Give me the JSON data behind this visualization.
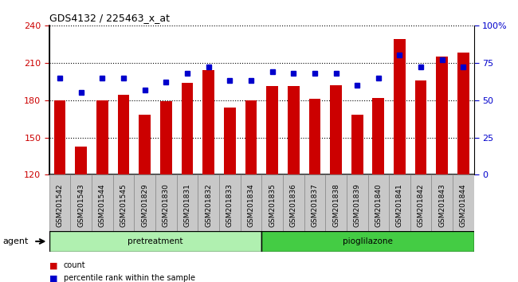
{
  "title": "GDS4132 / 225463_x_at",
  "samples": [
    "GSM201542",
    "GSM201543",
    "GSM201544",
    "GSM201545",
    "GSM201829",
    "GSM201830",
    "GSM201831",
    "GSM201832",
    "GSM201833",
    "GSM201834",
    "GSM201835",
    "GSM201836",
    "GSM201837",
    "GSM201838",
    "GSM201839",
    "GSM201840",
    "GSM201841",
    "GSM201842",
    "GSM201843",
    "GSM201844"
  ],
  "bar_values": [
    180,
    143,
    180,
    184,
    168,
    179,
    194,
    204,
    174,
    180,
    191,
    191,
    181,
    192,
    168,
    182,
    229,
    196,
    215,
    218
  ],
  "dot_values": [
    65,
    55,
    65,
    65,
    57,
    62,
    68,
    72,
    63,
    63,
    69,
    68,
    68,
    68,
    60,
    65,
    80,
    72,
    77,
    72
  ],
  "bar_color": "#cc0000",
  "dot_color": "#0000cc",
  "ylim_left": [
    120,
    240
  ],
  "yticks_left": [
    120,
    150,
    180,
    210,
    240
  ],
  "ylim_right": [
    0,
    100
  ],
  "yticks_right": [
    0,
    25,
    50,
    75,
    100
  ],
  "yright_labels": [
    "0",
    "25",
    "50",
    "75",
    "100%"
  ],
  "group1_label": "pretreatment",
  "group2_label": "pioglilazone",
  "group1_count": 10,
  "group2_count": 10,
  "agent_label": "agent",
  "legend_bar": "count",
  "legend_dot": "percentile rank within the sample",
  "bg_axes": "#ffffff",
  "sample_box_color": "#c8c8c8",
  "group1_color": "#b0f0b0",
  "group2_color": "#44cc44",
  "bar_width": 0.55
}
